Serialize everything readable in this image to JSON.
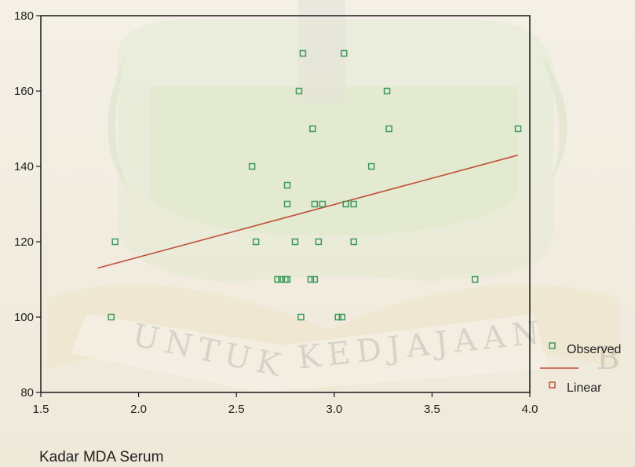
{
  "chart_data": {
    "type": "scatter",
    "title": "",
    "xlabel": "Kadar MDA Serum",
    "ylabel": "",
    "xlim": [
      1.5,
      4.0
    ],
    "ylim": [
      80,
      180
    ],
    "x_ticks": [
      "1.5",
      "2.0",
      "2.5",
      "3.0",
      "3.5",
      "4.0"
    ],
    "y_ticks": [
      "80",
      "100",
      "120",
      "140",
      "160",
      "180"
    ],
    "grid": false,
    "legend_position": "bottom-right",
    "series": [
      {
        "name": "Observed",
        "marker": "open-square",
        "color": "#3a9a5a",
        "points": [
          [
            1.86,
            100
          ],
          [
            1.88,
            120
          ],
          [
            2.58,
            140
          ],
          [
            2.6,
            120
          ],
          [
            2.71,
            110
          ],
          [
            2.73,
            110
          ],
          [
            2.75,
            110
          ],
          [
            2.76,
            110
          ],
          [
            2.76,
            130
          ],
          [
            2.76,
            135
          ],
          [
            2.8,
            120
          ],
          [
            2.82,
            160
          ],
          [
            2.83,
            100
          ],
          [
            2.84,
            170
          ],
          [
            2.88,
            110
          ],
          [
            2.89,
            150
          ],
          [
            2.9,
            130
          ],
          [
            2.9,
            110
          ],
          [
            2.92,
            120
          ],
          [
            2.94,
            130
          ],
          [
            3.02,
            100
          ],
          [
            3.04,
            100
          ],
          [
            3.05,
            170
          ],
          [
            3.06,
            130
          ],
          [
            3.1,
            130
          ],
          [
            3.1,
            120
          ],
          [
            3.19,
            140
          ],
          [
            3.27,
            160
          ],
          [
            3.28,
            150
          ],
          [
            3.72,
            110
          ],
          [
            3.94,
            150
          ]
        ]
      },
      {
        "name": "Linear",
        "type": "line",
        "color": "#c0503a",
        "points": [
          [
            1.79,
            113
          ],
          [
            3.94,
            143
          ]
        ]
      }
    ]
  },
  "watermark": {
    "text_left": "UNTUK",
    "text_right": "KEDJAJAAN",
    "fragment_right": "B"
  }
}
